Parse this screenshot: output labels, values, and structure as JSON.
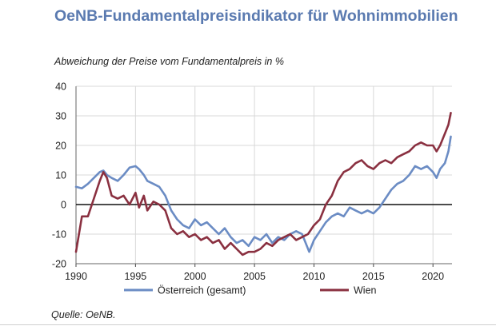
{
  "chart_data": {
    "type": "line",
    "title": "OeNB-Fundamentalpreisindikator für Wohnimmobilien",
    "subtitle": "Abweichung der Preise vom Fundamentalpreis in %",
    "source": "Quelle: OeNB.",
    "xlim": [
      1990,
      2021.6
    ],
    "ylim": [
      -20,
      40
    ],
    "x_ticks": [
      1990,
      1995,
      2000,
      2005,
      2010,
      2015,
      2020
    ],
    "y_ticks": [
      -20,
      -10,
      0,
      10,
      20,
      30,
      40
    ],
    "grid": true,
    "zero_line": true,
    "legend_position": "bottom",
    "series": [
      {
        "name": "Österreich (gesamt)",
        "color": "#6b8cc4",
        "x": [
          1990,
          1990.5,
          1991,
          1991.5,
          1992,
          1992.3,
          1992.6,
          1993,
          1993.5,
          1994,
          1994.5,
          1995,
          1995.3,
          1995.7,
          1996,
          1996.5,
          1997,
          1997.5,
          1998,
          1998.5,
          1999,
          1999.5,
          2000,
          2000.5,
          2001,
          2001.5,
          2002,
          2002.5,
          2003,
          2003.5,
          2004,
          2004.5,
          2005,
          2005.5,
          2006,
          2006.5,
          2007,
          2007.5,
          2008,
          2008.5,
          2009,
          2009.3,
          2009.6,
          2010,
          2010.5,
          2011,
          2011.5,
          2012,
          2012.5,
          2013,
          2013.5,
          2014,
          2014.5,
          2015,
          2015.5,
          2016,
          2016.5,
          2017,
          2017.5,
          2018,
          2018.5,
          2019,
          2019.5,
          2020,
          2020.3,
          2020.6,
          2021,
          2021.3,
          2021.5
        ],
        "values": [
          6,
          5.5,
          7,
          9,
          11,
          11.5,
          10,
          9,
          8,
          10,
          12.5,
          13,
          12,
          10,
          8,
          7,
          6,
          3,
          -2,
          -5,
          -7,
          -8,
          -5,
          -7,
          -6,
          -8,
          -10,
          -8,
          -11,
          -13,
          -12,
          -14,
          -11,
          -12,
          -10,
          -13,
          -11,
          -12,
          -10,
          -9,
          -10,
          -13,
          -16,
          -12,
          -9,
          -6,
          -4,
          -3,
          -4,
          -1,
          -2,
          -3,
          -2,
          -3,
          -1,
          2,
          5,
          7,
          8,
          10,
          13,
          12,
          13,
          11,
          9,
          12,
          14,
          18,
          23
        ]
      },
      {
        "name": "Wien",
        "color": "#8a3040",
        "x": [
          1990,
          1990.5,
          1991,
          1991.5,
          1992,
          1992.3,
          1992.6,
          1993,
          1993.5,
          1994,
          1994.5,
          1995,
          1995.3,
          1995.7,
          1996,
          1996.5,
          1997,
          1997.5,
          1998,
          1998.5,
          1999,
          1999.5,
          2000,
          2000.5,
          2001,
          2001.5,
          2002,
          2002.5,
          2003,
          2003.5,
          2004,
          2004.5,
          2005,
          2005.5,
          2006,
          2006.5,
          2007,
          2007.5,
          2008,
          2008.5,
          2009,
          2009.5,
          2010,
          2010.5,
          2011,
          2011.5,
          2012,
          2012.5,
          2013,
          2013.5,
          2014,
          2014.5,
          2015,
          2015.5,
          2016,
          2016.5,
          2017,
          2017.5,
          2018,
          2018.5,
          2019,
          2019.5,
          2020,
          2020.3,
          2020.6,
          2021,
          2021.3,
          2021.5
        ],
        "values": [
          -16,
          -4,
          -4,
          2,
          8,
          11,
          9,
          3,
          2,
          3,
          0,
          4,
          -1,
          3,
          -2,
          1,
          0,
          -2,
          -8,
          -10,
          -9,
          -11,
          -10,
          -12,
          -11,
          -13,
          -12,
          -15,
          -13,
          -15,
          -17,
          -16,
          -16,
          -15,
          -13,
          -14,
          -12,
          -11,
          -10,
          -12,
          -11,
          -10,
          -7,
          -5,
          0,
          3,
          8,
          11,
          12,
          14,
          15,
          13,
          12,
          14,
          15,
          14,
          16,
          17,
          18,
          20,
          21,
          20,
          20,
          18,
          20,
          24,
          27,
          31
        ]
      }
    ]
  }
}
